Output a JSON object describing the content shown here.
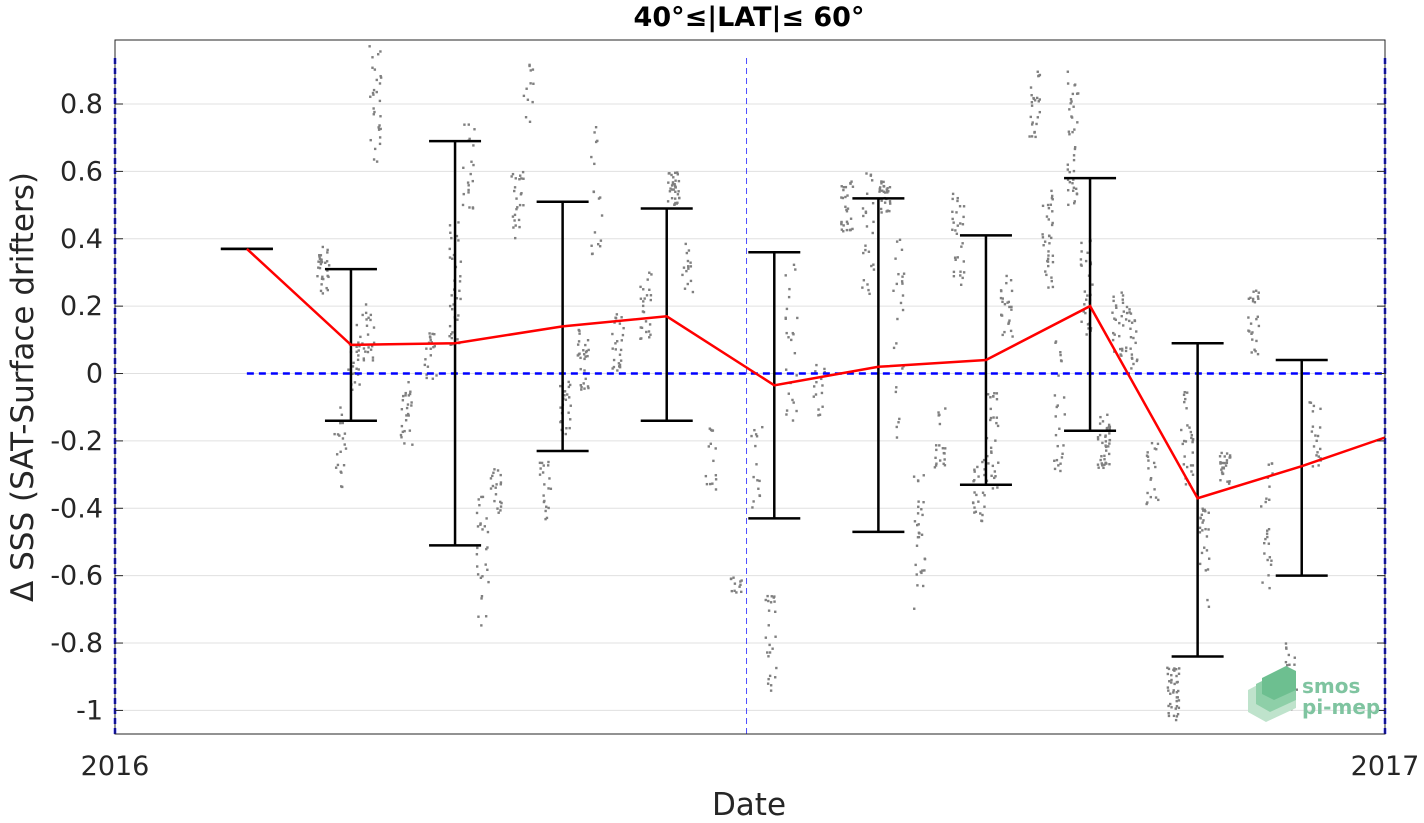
{
  "chart_data": {
    "type": "scatter",
    "title": "40°≤|LAT|≤ 60°",
    "xlabel": "Date",
    "ylabel": "Δ SSS (SAT-Surface drifters)",
    "xlim": [
      "2016-01-01",
      "2017-01-01"
    ],
    "ylim": [
      -1.07,
      0.99
    ],
    "x_ticks": [
      "2016",
      "2017"
    ],
    "y_ticks": [
      0.8,
      0.6,
      0.4,
      0.2,
      0,
      -0.2,
      -0.4,
      -0.6,
      -0.8,
      -1
    ],
    "y_tick_labels": [
      "0.8",
      "0.6",
      "0.4",
      "0.2",
      "0",
      "-0.2",
      "-0.4",
      "-0.6",
      "-0.8",
      "-1"
    ],
    "grid": true,
    "monthly_stats": {
      "x": [
        "2016-02-08",
        "2016-03-09",
        "2016-04-08",
        "2016-05-09",
        "2016-06-08",
        "2016-07-09",
        "2016-08-08",
        "2016-09-08",
        "2016-10-08",
        "2016-11-08",
        "2016-12-08",
        "2017-01-01"
      ],
      "mean": [
        0.37,
        0.085,
        0.09,
        0.14,
        0.17,
        -0.035,
        0.02,
        0.04,
        0.2,
        -0.37,
        -0.275,
        -0.19
      ],
      "upper": [
        0.37,
        0.31,
        0.69,
        0.51,
        0.49,
        0.36,
        0.52,
        0.41,
        0.58,
        0.09,
        0.04,
        null
      ],
      "lower": [
        0.37,
        -0.14,
        -0.51,
        -0.23,
        -0.14,
        -0.43,
        -0.47,
        -0.33,
        -0.17,
        -0.84,
        -0.6,
        null
      ],
      "line_color": "#ff0000",
      "errorbar_color": "#000000"
    },
    "zero_line": {
      "y": 0,
      "x_start": "2016-02-08",
      "x_end": "2017-01-01",
      "color": "#0000ff"
    },
    "mid_year_marker": {
      "x": "2016-07-01",
      "color": "#0000ff"
    },
    "scatter_color": "#808080",
    "scatter_groups": [
      {
        "x": "2016-03-01",
        "y": 0.3,
        "spread": 0.08,
        "n": 30
      },
      {
        "x": "2016-03-06",
        "y": -0.22,
        "spread": 0.12,
        "n": 20
      },
      {
        "x": "2016-03-10",
        "y": 0.05,
        "spread": 0.1,
        "n": 25
      },
      {
        "x": "2016-03-14",
        "y": 0.12,
        "spread": 0.1,
        "n": 22
      },
      {
        "x": "2016-03-16",
        "y": 0.8,
        "spread": 0.18,
        "n": 30
      },
      {
        "x": "2016-03-25",
        "y": -0.12,
        "spread": 0.1,
        "n": 25
      },
      {
        "x": "2016-04-01",
        "y": 0.05,
        "spread": 0.07,
        "n": 20
      },
      {
        "x": "2016-04-08",
        "y": 0.28,
        "spread": 0.2,
        "n": 35
      },
      {
        "x": "2016-04-12",
        "y": 0.6,
        "spread": 0.15,
        "n": 20
      },
      {
        "x": "2016-04-16",
        "y": -0.55,
        "spread": 0.2,
        "n": 30
      },
      {
        "x": "2016-04-20",
        "y": -0.35,
        "spread": 0.08,
        "n": 20
      },
      {
        "x": "2016-04-26",
        "y": 0.5,
        "spread": 0.1,
        "n": 25
      },
      {
        "x": "2016-04-29",
        "y": 0.82,
        "spread": 0.1,
        "n": 12
      },
      {
        "x": "2016-05-04",
        "y": -0.35,
        "spread": 0.1,
        "n": 20
      },
      {
        "x": "2016-05-10",
        "y": -0.1,
        "spread": 0.08,
        "n": 25
      },
      {
        "x": "2016-05-15",
        "y": 0.05,
        "spread": 0.1,
        "n": 30
      },
      {
        "x": "2016-05-19",
        "y": 0.55,
        "spread": 0.2,
        "n": 18
      },
      {
        "x": "2016-05-25",
        "y": 0.08,
        "spread": 0.1,
        "n": 25
      },
      {
        "x": "2016-06-02",
        "y": 0.2,
        "spread": 0.1,
        "n": 25
      },
      {
        "x": "2016-06-10",
        "y": 0.55,
        "spread": 0.05,
        "n": 35
      },
      {
        "x": "2016-06-14",
        "y": 0.3,
        "spread": 0.1,
        "n": 15
      },
      {
        "x": "2016-06-21",
        "y": -0.25,
        "spread": 0.1,
        "n": 15
      },
      {
        "x": "2016-06-28",
        "y": -0.62,
        "spread": 0.03,
        "n": 12
      },
      {
        "x": "2016-07-04",
        "y": -0.3,
        "spread": 0.15,
        "n": 15
      },
      {
        "x": "2016-07-08",
        "y": -0.8,
        "spread": 0.15,
        "n": 25
      },
      {
        "x": "2016-07-14",
        "y": 0.1,
        "spread": 0.25,
        "n": 25
      },
      {
        "x": "2016-07-22",
        "y": -0.06,
        "spread": 0.1,
        "n": 15
      },
      {
        "x": "2016-07-30",
        "y": 0.5,
        "spread": 0.08,
        "n": 30
      },
      {
        "x": "2016-08-05",
        "y": 0.4,
        "spread": 0.2,
        "n": 25
      },
      {
        "x": "2016-08-10",
        "y": 0.52,
        "spread": 0.05,
        "n": 30
      },
      {
        "x": "2016-08-14",
        "y": 0.1,
        "spread": 0.3,
        "n": 25
      },
      {
        "x": "2016-08-20",
        "y": -0.5,
        "spread": 0.2,
        "n": 30
      },
      {
        "x": "2016-08-26",
        "y": -0.2,
        "spread": 0.1,
        "n": 20
      },
      {
        "x": "2016-08-31",
        "y": 0.4,
        "spread": 0.15,
        "n": 30
      },
      {
        "x": "2016-09-06",
        "y": -0.35,
        "spread": 0.1,
        "n": 25
      },
      {
        "x": "2016-09-10",
        "y": -0.2,
        "spread": 0.15,
        "n": 30
      },
      {
        "x": "2016-09-14",
        "y": 0.2,
        "spread": 0.1,
        "n": 25
      },
      {
        "x": "2016-09-22",
        "y": 0.8,
        "spread": 0.1,
        "n": 25
      },
      {
        "x": "2016-09-26",
        "y": 0.4,
        "spread": 0.15,
        "n": 35
      },
      {
        "x": "2016-09-29",
        "y": -0.1,
        "spread": 0.2,
        "n": 25
      },
      {
        "x": "2016-10-03",
        "y": 0.7,
        "spread": 0.2,
        "n": 40
      },
      {
        "x": "2016-10-07",
        "y": 0.25,
        "spread": 0.15,
        "n": 30
      },
      {
        "x": "2016-10-12",
        "y": -0.2,
        "spread": 0.08,
        "n": 40
      },
      {
        "x": "2016-10-16",
        "y": 0.15,
        "spread": 0.1,
        "n": 25
      },
      {
        "x": "2016-10-20",
        "y": 0.1,
        "spread": 0.1,
        "n": 25
      },
      {
        "x": "2016-10-26",
        "y": -0.3,
        "spread": 0.1,
        "n": 20
      },
      {
        "x": "2016-11-01",
        "y": -0.95,
        "spread": 0.08,
        "n": 40
      },
      {
        "x": "2016-11-05",
        "y": -0.2,
        "spread": 0.15,
        "n": 30
      },
      {
        "x": "2016-11-10",
        "y": -0.55,
        "spread": 0.15,
        "n": 25
      },
      {
        "x": "2016-11-16",
        "y": -0.28,
        "spread": 0.05,
        "n": 25
      },
      {
        "x": "2016-11-24",
        "y": 0.15,
        "spread": 0.1,
        "n": 25
      },
      {
        "x": "2016-11-28",
        "y": -0.45,
        "spread": 0.2,
        "n": 25
      },
      {
        "x": "2016-12-05",
        "y": -0.9,
        "spread": 0.1,
        "n": 15
      },
      {
        "x": "2016-12-12",
        "y": -0.18,
        "spread": 0.1,
        "n": 20
      }
    ]
  },
  "logo": {
    "line1": "smos",
    "line2": "pi-mep"
  },
  "colors": {
    "mean_line": "#ff0000",
    "error_bars": "#000000",
    "reference": "#0000ff",
    "grid": "#e0e0e0",
    "scatter": "#808080",
    "logo": "#7fc4a0"
  }
}
